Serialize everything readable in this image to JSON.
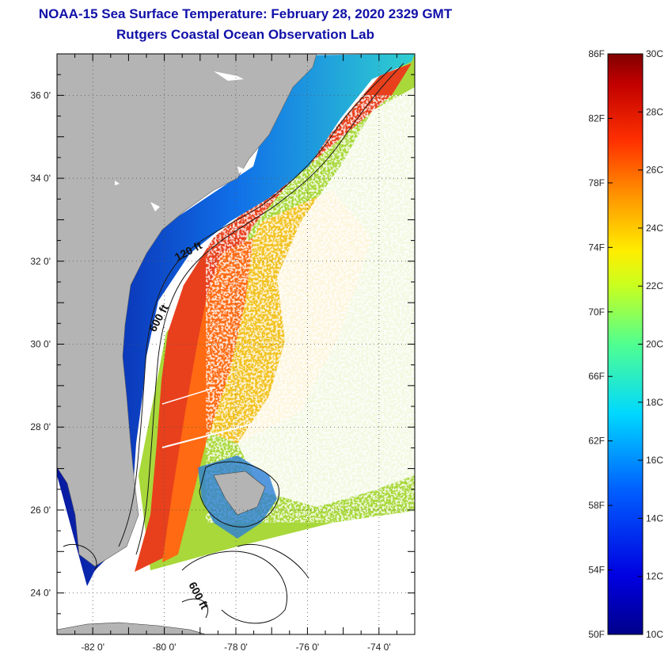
{
  "header": {
    "title": "NOAA-15 Sea Surface Temperature:  February 28, 2020 2329 GMT",
    "subtitle": "Rutgers Coastal Ocean Observation Lab"
  },
  "map": {
    "lon_range": [
      -83,
      -73
    ],
    "lat_range": [
      23,
      37
    ],
    "lon_ticks": [
      {
        "value": -82,
        "label": "-82 0'"
      },
      {
        "value": -80,
        "label": "-80 0'"
      },
      {
        "value": -78,
        "label": "-78 0'"
      },
      {
        "value": -76,
        "label": "-76 0'"
      },
      {
        "value": -74,
        "label": "-74 0'"
      }
    ],
    "lat_ticks": [
      {
        "value": 24,
        "label": "24 0'"
      },
      {
        "value": 26,
        "label": "26 0'"
      },
      {
        "value": 28,
        "label": "28 0'"
      },
      {
        "value": 30,
        "label": "30 0'"
      },
      {
        "value": 32,
        "label": "32 0'"
      },
      {
        "value": 34,
        "label": "34 0'"
      },
      {
        "value": 36,
        "label": "36 0'"
      }
    ],
    "contours": [
      {
        "label": "120 ft"
      },
      {
        "label": "600 ft"
      },
      {
        "label": "600 ft"
      }
    ],
    "colors": {
      "land": "#b4b4b4",
      "cloud": "#ffffff",
      "gulf_stream": "#e8401c",
      "cold_shelf": "#0a1ab0"
    }
  },
  "colorbar": {
    "range_c": [
      10,
      30
    ],
    "range_f": [
      50,
      86
    ],
    "celsius_labels": [
      "30C",
      "28C",
      "26C",
      "24C",
      "22C",
      "20C",
      "18C",
      "16C",
      "14C",
      "12C",
      "10C"
    ],
    "fahrenheit_labels": [
      "86F",
      "82F",
      "78F",
      "74F",
      "70F",
      "66F",
      "62F",
      "58F",
      "54F",
      "50F"
    ]
  }
}
